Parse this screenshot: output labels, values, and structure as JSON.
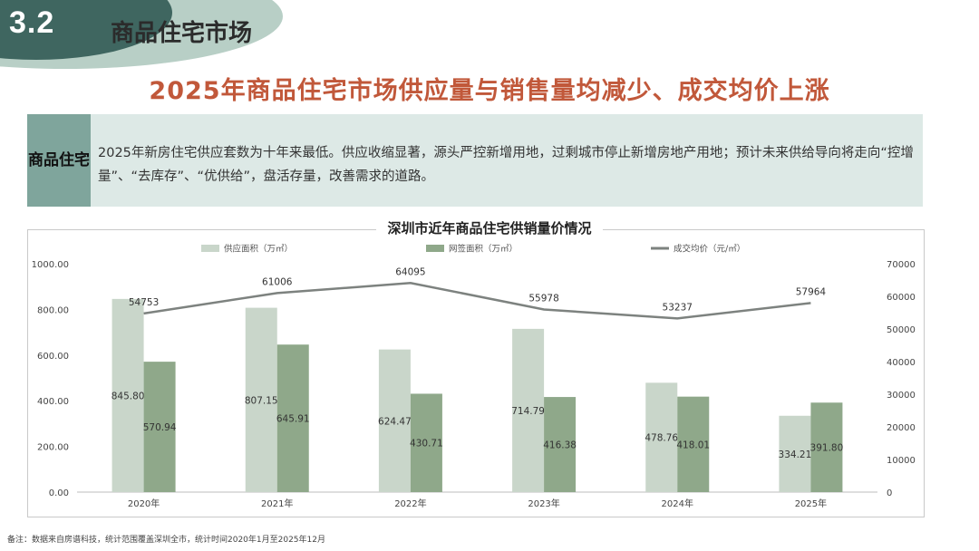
{
  "header": {
    "section_number": "3.2",
    "section_title": "商品住宅市场"
  },
  "headline": "2025年商品住宅市场供应量与销售量均减少、成交均价上涨",
  "summary": {
    "label": "商品住宅",
    "text": "2025年新房住宅供应套数为十年来最低。供应收缩显著，源头严控新增用地，过剩城市停止新增房地产用地；预计未来供给导向将走向“控增量”、“去库存”、“优供给”，盘活存量，改善需求的道路。"
  },
  "chart_data": {
    "type": "bar",
    "title": "深圳市近年商品住宅供销量价情况",
    "categories": [
      "2020年",
      "2021年",
      "2022年",
      "2023年",
      "2024年",
      "2025年"
    ],
    "series": [
      {
        "name": "供应面积（万㎡）",
        "type": "bar",
        "axis": "left",
        "color": "#c9d6ca",
        "values": [
          845.8,
          807.15,
          624.47,
          714.79,
          478.76,
          334.21
        ],
        "labels": [
          "845.80",
          "807.15",
          "624.47",
          "714.79",
          "478.76",
          "334.21"
        ]
      },
      {
        "name": "网签面积（万㎡）",
        "type": "bar",
        "axis": "left",
        "color": "#8fa88a",
        "values": [
          570.94,
          645.91,
          430.71,
          416.38,
          418.01,
          391.8
        ],
        "labels": [
          "570.94",
          "645.91",
          "430.71",
          "416.38",
          "418.01",
          "391.80"
        ]
      },
      {
        "name": "成交均价（元/㎡）",
        "type": "line",
        "axis": "right",
        "color": "#7d827f",
        "values": [
          54753,
          61006,
          64095,
          55978,
          53237,
          57964
        ],
        "labels": [
          "54753",
          "61006",
          "64095",
          "55978",
          "53237",
          "57964"
        ]
      }
    ],
    "y_left": {
      "range": [
        0,
        1000
      ],
      "ticks": [
        0,
        200,
        400,
        600,
        800,
        1000
      ],
      "tick_labels": [
        "0.00",
        "200.00",
        "400.00",
        "600.00",
        "800.00",
        "1000.00"
      ]
    },
    "y_right": {
      "range": [
        0,
        70000
      ],
      "ticks": [
        0,
        10000,
        20000,
        30000,
        40000,
        50000,
        60000,
        70000
      ],
      "tick_labels": [
        "0",
        "10000",
        "20000",
        "30000",
        "40000",
        "50000",
        "60000",
        "70000"
      ]
    },
    "legend_position": "top",
    "grid": false
  },
  "footer": {
    "note": "备注：数据来自房谱科技，统计范围覆盖深圳全市，统计时间2020年1月至2025年12月"
  }
}
